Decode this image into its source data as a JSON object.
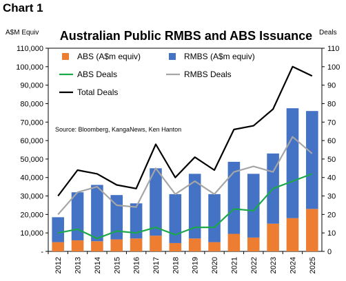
{
  "figure_label": "Chart 1",
  "chart_data": {
    "type": "bar",
    "title": "Australian Public RMBS and ABS Issuance",
    "left_axis_label": "A$M Equiv",
    "right_axis_label": "Deals",
    "categories": [
      "2012",
      "2013",
      "2014",
      "2015",
      "2016",
      "2017",
      "2018",
      "2019",
      "2020",
      "2021",
      "2022",
      "2023",
      "2024",
      "2025"
    ],
    "ylim_left": [
      0,
      110000
    ],
    "ylim_right": [
      0,
      110
    ],
    "yticks_left": [
      "-",
      "10,000",
      "20,000",
      "30,000",
      "40,000",
      "50,000",
      "60,000",
      "70,000",
      "80,000",
      "90,000",
      "100,000",
      "110,000"
    ],
    "yticks_right": [
      "0",
      "10",
      "20",
      "30",
      "40",
      "50",
      "60",
      "70",
      "80",
      "90",
      "100",
      "110"
    ],
    "stacked_bars": true,
    "bar_series": [
      {
        "name": "ABS (A$m equiv)",
        "color": "#ED7D31",
        "values": [
          5000,
          6000,
          5500,
          6500,
          7000,
          8500,
          4500,
          7000,
          5000,
          9500,
          7500,
          15000,
          18000,
          23000
        ]
      },
      {
        "name": "RMBS (A$m equiv)",
        "color": "#4472C4",
        "values": [
          13500,
          26000,
          30500,
          24000,
          19000,
          36500,
          26500,
          35000,
          26000,
          39000,
          34500,
          38000,
          59500,
          53000
        ]
      }
    ],
    "line_series": [
      {
        "name": "ABS Deals",
        "color": "#1AA84A",
        "axis": "right",
        "values": [
          10,
          12,
          7,
          11,
          10,
          13,
          9,
          13,
          13,
          23,
          22,
          34,
          38,
          42
        ]
      },
      {
        "name": "RMBS Deals",
        "color": "#A6A6A6",
        "axis": "right",
        "values": [
          20,
          32,
          35,
          25,
          24,
          45,
          31,
          38,
          31,
          43,
          46,
          43,
          62,
          53
        ]
      },
      {
        "name": "Total Deals",
        "color": "#000000",
        "axis": "right",
        "values": [
          30,
          44,
          42,
          36,
          34,
          58,
          40,
          51,
          44,
          66,
          68,
          77,
          100,
          95
        ]
      }
    ],
    "annotation": "Source: Bloomberg,  KangaNews,  Ken Hanton",
    "legend_placement": "top-left",
    "grid": false
  }
}
